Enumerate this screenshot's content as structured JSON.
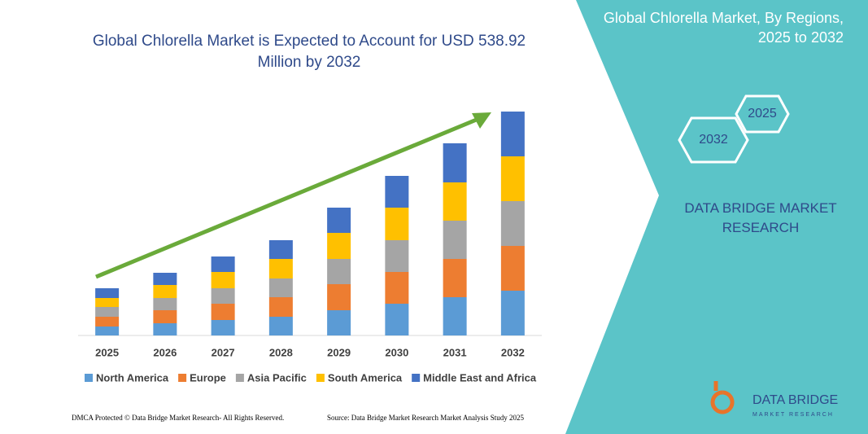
{
  "chart_data": {
    "type": "stacked-bar",
    "title": "Global Chlorella Market is Expected to Account for USD 538.92 Million by 2032",
    "categories": [
      "2025",
      "2026",
      "2027",
      "2028",
      "2029",
      "2030",
      "2031",
      "2032"
    ],
    "series": [
      {
        "name": "North America",
        "color": "#5b9bd5",
        "values": [
          11,
          15,
          19,
          23,
          31,
          39,
          47,
          55
        ]
      },
      {
        "name": "Europe",
        "color": "#ed7d31",
        "values": [
          12,
          16,
          20,
          24,
          32,
          39,
          47,
          55
        ]
      },
      {
        "name": "Asia Pacific",
        "color": "#a5a5a5",
        "values": [
          12,
          15,
          19,
          23,
          31,
          39,
          47,
          55
        ]
      },
      {
        "name": "South America",
        "color": "#ffc000",
        "values": [
          11,
          16,
          20,
          24,
          32,
          40,
          47,
          55
        ]
      },
      {
        "name": "Middle East and Africa",
        "color": "#4472c4",
        "values": [
          12,
          15,
          19,
          23,
          31,
          39,
          48,
          55
        ]
      }
    ]
  },
  "panel": {
    "title": "Global Chlorella Market, By Regions, 2025 to 2032",
    "hex_top": "2025",
    "hex_bottom": "2032",
    "brand": "DATA BRIDGE MARKET RESEARCH"
  },
  "logo": {
    "name": "DATA BRIDGE",
    "tagline": "MARKET RESEARCH"
  },
  "footer": {
    "left": "DMCA Protected © Data Bridge Market Research- All Rights Reserved.",
    "right": "Source: Data Bridge Market Research Market Analysis Study 2025"
  }
}
